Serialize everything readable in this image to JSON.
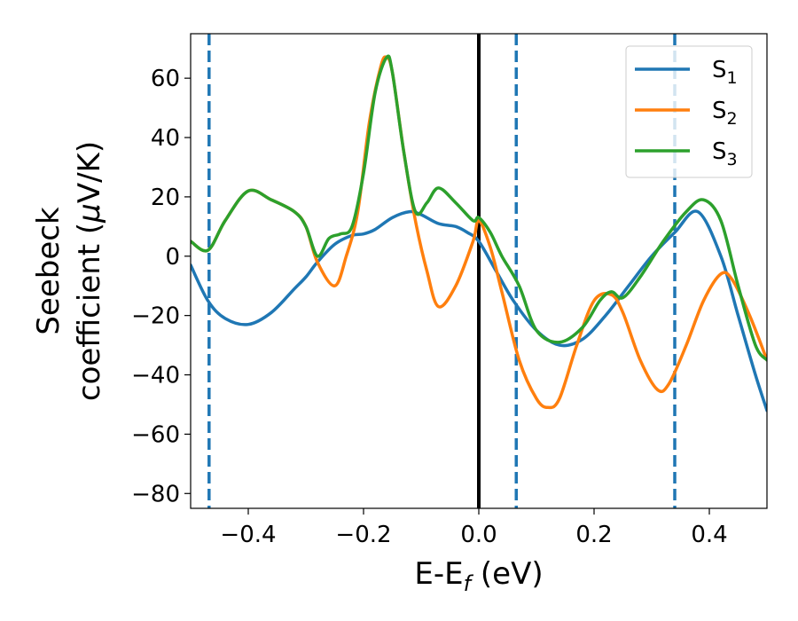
{
  "chart_data": {
    "type": "line",
    "xlabel": {
      "base": "E-E",
      "sub": "f",
      "unit": " (eV)"
    },
    "ylabel": {
      "line1": "Seebeck",
      "line2a": "coefficient  (",
      "mu": "μ",
      "line2b": "V/K)"
    },
    "xlim": [
      -0.5,
      0.5
    ],
    "ylim": [
      -85,
      75
    ],
    "xticks": [
      -0.4,
      -0.2,
      0.0,
      0.2,
      0.4
    ],
    "xtick_labels": [
      "−0.4",
      "−0.2",
      "0.0",
      "0.2",
      "0.4"
    ],
    "yticks": [
      -80,
      -60,
      -40,
      -20,
      0,
      20,
      40,
      60
    ],
    "ytick_labels": [
      "−80",
      "−60",
      "−40",
      "−20",
      "0",
      "20",
      "40",
      "60"
    ],
    "grid": false,
    "legend_position": "top-right",
    "vertical_lines": [
      {
        "x": -0.468,
        "style": "dashed",
        "color": "#1f77b4"
      },
      {
        "x": 0.0,
        "style": "solid",
        "color": "#000000"
      },
      {
        "x": 0.065,
        "style": "dashed",
        "color": "#1f77b4"
      },
      {
        "x": 0.34,
        "style": "dashed",
        "color": "#1f77b4"
      }
    ],
    "series": [
      {
        "name": "S",
        "sub": "1",
        "color": "#1f77b4",
        "x": [
          -0.5,
          -0.47,
          -0.44,
          -0.4,
          -0.36,
          -0.32,
          -0.3,
          -0.28,
          -0.25,
          -0.22,
          -0.2,
          -0.18,
          -0.15,
          -0.12,
          -0.1,
          -0.07,
          -0.04,
          -0.02,
          0.0,
          0.03,
          0.06,
          0.1,
          0.14,
          0.18,
          0.22,
          0.26,
          0.3,
          0.34,
          0.38,
          0.42,
          0.45,
          0.48,
          0.5
        ],
        "y": [
          -3,
          -15,
          -21,
          -23,
          -19,
          -11,
          -7,
          -2,
          4,
          7,
          7.5,
          9,
          13,
          15,
          14,
          11,
          10,
          8,
          5,
          -5,
          -15,
          -25,
          -30,
          -28,
          -20,
          -10,
          0,
          8,
          15,
          0,
          -20,
          -40,
          -52
        ]
      },
      {
        "name": "S",
        "sub": "2",
        "color": "#ff7f0e",
        "x": [
          -0.5,
          -0.47,
          -0.44,
          -0.4,
          -0.36,
          -0.32,
          -0.3,
          -0.28,
          -0.25,
          -0.23,
          -0.21,
          -0.19,
          -0.17,
          -0.16,
          -0.15,
          -0.13,
          -0.11,
          -0.09,
          -0.07,
          -0.04,
          -0.01,
          0.0,
          0.02,
          0.04,
          0.07,
          0.1,
          0.12,
          0.14,
          0.17,
          0.2,
          0.23,
          0.25,
          0.28,
          0.31,
          0.33,
          0.36,
          0.39,
          0.42,
          0.44,
          0.47,
          0.5
        ],
        "y": [
          5,
          2,
          12,
          22,
          19,
          15,
          10,
          -2,
          -10,
          0,
          15,
          45,
          64,
          67,
          62,
          35,
          12,
          -5,
          -17,
          -10,
          5,
          12,
          3,
          -12,
          -35,
          -48,
          -51,
          -48,
          -30,
          -15,
          -13,
          -19,
          -35,
          -45,
          -43,
          -30,
          -15,
          -6,
          -8,
          -20,
          -35
        ]
      },
      {
        "name": "S",
        "sub": "3",
        "color": "#2ca02c",
        "x": [
          -0.5,
          -0.47,
          -0.44,
          -0.4,
          -0.36,
          -0.32,
          -0.3,
          -0.28,
          -0.26,
          -0.24,
          -0.22,
          -0.2,
          -0.18,
          -0.16,
          -0.15,
          -0.13,
          -0.11,
          -0.09,
          -0.07,
          -0.04,
          -0.01,
          0.0,
          0.02,
          0.04,
          0.07,
          0.1,
          0.14,
          0.18,
          0.21,
          0.23,
          0.25,
          0.28,
          0.32,
          0.36,
          0.39,
          0.42,
          0.45,
          0.48,
          0.5
        ],
        "y": [
          5,
          2,
          12,
          22,
          19,
          15,
          10,
          0,
          6,
          7.5,
          10,
          28,
          55,
          67,
          62,
          35,
          15,
          18,
          23,
          18,
          12,
          13,
          8,
          0,
          -10,
          -25,
          -29,
          -24,
          -15,
          -12,
          -14,
          -7,
          5,
          15,
          19,
          12,
          -10,
          -30,
          -35
        ]
      }
    ]
  }
}
